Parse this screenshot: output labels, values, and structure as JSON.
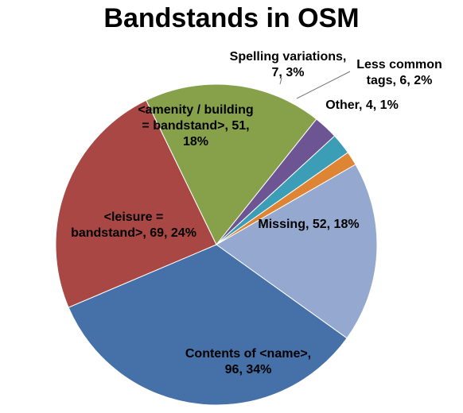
{
  "chart_data": {
    "type": "pie",
    "title": "Bandstands in OSM",
    "slices": [
      {
        "label": "Missing",
        "value": 52,
        "percent": "18%",
        "color": "#95A9D0"
      },
      {
        "label": "Contents of <name>",
        "value": 96,
        "percent": "34%",
        "color": "#4570A8"
      },
      {
        "label": "<leisure = bandstand>",
        "value": 69,
        "percent": "24%",
        "color": "#A84744"
      },
      {
        "label": "<amenity / building = bandstand>",
        "value": 51,
        "percent": "18%",
        "color": "#87A14B"
      },
      {
        "label": "Spelling variations",
        "value": 7,
        "percent": "3%",
        "color": "#6D5593"
      },
      {
        "label": "Less common tags",
        "value": 6,
        "percent": "2%",
        "color": "#3C9DB6"
      },
      {
        "label": "Other",
        "value": 4,
        "percent": "1%",
        "color": "#DE8435"
      }
    ],
    "data_labels": [
      [
        "Missing, 52, 18%"
      ],
      [
        "Contents of <name>,",
        "96, 34%"
      ],
      [
        "<leisure =",
        "bandstand>, 69, 24%"
      ],
      [
        "<amenity / building",
        "= bandstand>, 51,",
        "18%"
      ],
      [
        "Spelling variations,",
        "7, 3%"
      ],
      [
        "Less common",
        "tags, 6, 2%"
      ],
      [
        "Other, 4, 1%"
      ]
    ],
    "start_angle_deg": 60,
    "direction": "clockwise",
    "legend": "none"
  }
}
